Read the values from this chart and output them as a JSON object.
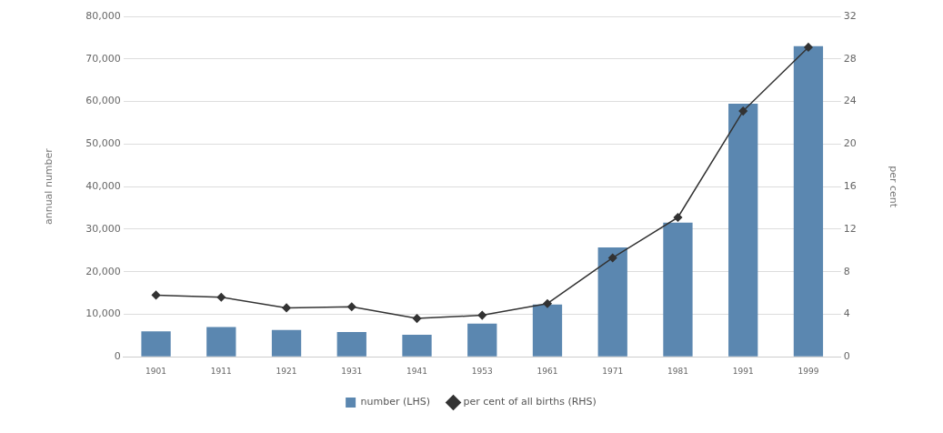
{
  "chart_data": {
    "type": "bar",
    "categories": [
      "1901",
      "1911",
      "1921",
      "1931",
      "1941",
      "1953",
      "1961",
      "1971",
      "1981",
      "1991",
      "1999"
    ],
    "ylabel": "annual number",
    "y2label": "per cent",
    "series": [
      {
        "name": "number (LHS)",
        "color": "#5b87b0",
        "values": [
          6000,
          7000,
          6300,
          5800,
          5200,
          7800,
          12300,
          25700,
          31500,
          59500,
          73000
        ]
      },
      {
        "name": "per cent of all births (RHS)",
        "type": "line",
        "axis": "y2",
        "color": "#333333",
        "values": [
          5.8,
          5.6,
          4.6,
          4.7,
          3.6,
          3.9,
          5.0,
          9.3,
          13.1,
          23.1,
          29.1
        ]
      }
    ],
    "ylim": [
      0,
      80000
    ],
    "yticks": [
      {
        "value": 0,
        "label": "0"
      },
      {
        "value": 10000,
        "label": "10,000"
      },
      {
        "value": 20000,
        "label": "20,000"
      },
      {
        "value": 30000,
        "label": "30,000"
      },
      {
        "value": 40000,
        "label": "40,000"
      },
      {
        "value": 50000,
        "label": "50,000"
      },
      {
        "value": 60000,
        "label": "60,000"
      },
      {
        "value": 70000,
        "label": "70,000"
      },
      {
        "value": 80000,
        "label": "80,000"
      }
    ],
    "y2lim": [
      0,
      32
    ],
    "y2ticks": [
      0,
      4,
      8,
      12,
      16,
      20,
      24,
      28,
      32
    ],
    "grid": "y",
    "legend": "bottom",
    "marker": "diamond"
  }
}
